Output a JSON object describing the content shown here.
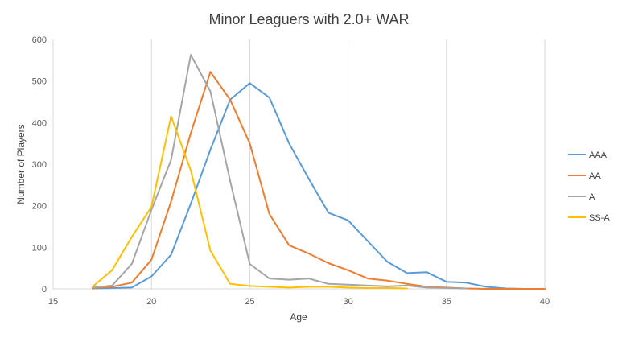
{
  "chart_data": {
    "type": "line",
    "title": "Minor Leaguers with 2.0+ WAR",
    "xlabel": "Age",
    "ylabel": "Number of Players",
    "xlim": [
      15,
      40
    ],
    "ylim": [
      0,
      600
    ],
    "x_ticks": [
      15,
      20,
      25,
      30,
      35,
      40
    ],
    "y_ticks": [
      0,
      100,
      200,
      300,
      400,
      500,
      600
    ],
    "grid": "vertical",
    "legend_position": "right",
    "series": [
      {
        "name": "AAA",
        "color": "#5B9BD5",
        "x": [
          17,
          18,
          19,
          20,
          21,
          22,
          23,
          24,
          25,
          26,
          27,
          28,
          29,
          30,
          31,
          32,
          33,
          34,
          35,
          36,
          37,
          38,
          39,
          40
        ],
        "values": [
          1,
          2,
          3,
          30,
          82,
          205,
          335,
          455,
          495,
          460,
          350,
          265,
          183,
          165,
          115,
          65,
          38,
          40,
          17,
          15,
          5,
          1,
          0,
          0
        ]
      },
      {
        "name": "AA",
        "color": "#ED7D31",
        "x": [
          17,
          18,
          19,
          20,
          21,
          22,
          23,
          24,
          25,
          26,
          27,
          28,
          29,
          30,
          31,
          32,
          33,
          34,
          35,
          36,
          37,
          38,
          39,
          40
        ],
        "values": [
          2,
          5,
          15,
          70,
          210,
          375,
          522,
          455,
          350,
          180,
          105,
          85,
          62,
          45,
          25,
          20,
          12,
          5,
          3,
          1,
          0,
          0,
          0,
          0
        ]
      },
      {
        "name": "A",
        "color": "#A5A5A5",
        "x": [
          17,
          18,
          19,
          20,
          21,
          22,
          23,
          24,
          25,
          26,
          27,
          28,
          29,
          30,
          31,
          32,
          33,
          34,
          35,
          36
        ],
        "values": [
          3,
          8,
          60,
          190,
          310,
          563,
          475,
          260,
          60,
          25,
          22,
          25,
          12,
          10,
          8,
          6,
          8,
          3,
          2,
          1
        ]
      },
      {
        "name": "SS-A",
        "color": "#FFC000",
        "x": [
          17,
          18,
          19,
          20,
          21,
          22,
          23,
          24,
          25,
          26,
          27,
          28,
          29,
          30,
          31,
          32,
          33
        ],
        "values": [
          5,
          45,
          125,
          197,
          415,
          285,
          92,
          12,
          7,
          5,
          3,
          5,
          5,
          3,
          2,
          2,
          1
        ]
      }
    ]
  }
}
